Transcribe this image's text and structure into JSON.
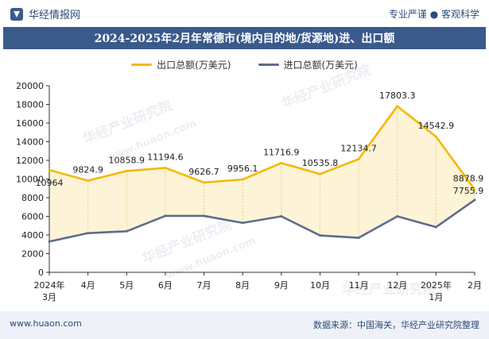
{
  "header": {
    "brand": "华经情报网",
    "tagline": "专业严谨 ● 客观科学",
    "title": "2024-2025年2月年常德市(境内目的地/货源地)进、出口额"
  },
  "footer": {
    "site": "www.huaon.com",
    "source": "数据来源：中国海关，华经产业研究院整理"
  },
  "watermarks": {
    "text1": "华经产业研究院",
    "text2": "www.huaon.com"
  },
  "colors": {
    "export": "#f5b800",
    "import": "#5f6b8e",
    "fill": "#fdf3d6",
    "title_bg": "#3a5a8c"
  },
  "chart_data": {
    "type": "line",
    "categories": [
      "2024年\n3月",
      "4月",
      "5月",
      "6月",
      "7月",
      "8月",
      "9月",
      "10月",
      "11月",
      "12月",
      "2025年\n1月",
      "2月"
    ],
    "series": [
      {
        "name": "出口总额(万美元)",
        "values": [
          10964,
          9824.9,
          10858.9,
          11194.6,
          9626.7,
          9956.1,
          11716.9,
          10535.8,
          12134.7,
          17803.3,
          14542.9,
          8878.9
        ],
        "labels": [
          "10964",
          "9824.9",
          "10858.9",
          "11194.6",
          "9626.7",
          "9956.1",
          "11716.9",
          "10535.8",
          "12134.7",
          "17803.3",
          "14542.9",
          "8878.9"
        ]
      },
      {
        "name": "进口总额(万美元)",
        "values": [
          3300,
          4200,
          4400,
          6050,
          6050,
          5300,
          6000,
          3950,
          3700,
          6000,
          4850,
          7755.9
        ],
        "labels": [
          "",
          "",
          "",
          "",
          "",
          "",
          "",
          "",
          "",
          "",
          "",
          "7755.9"
        ]
      }
    ],
    "yticks": [
      "0",
      "2000",
      "4000",
      "6000",
      "8000",
      "10000",
      "12000",
      "14000",
      "16000",
      "18000",
      "20000"
    ],
    "ylim": [
      0,
      20000
    ],
    "grid": false,
    "legend": "top-center"
  }
}
